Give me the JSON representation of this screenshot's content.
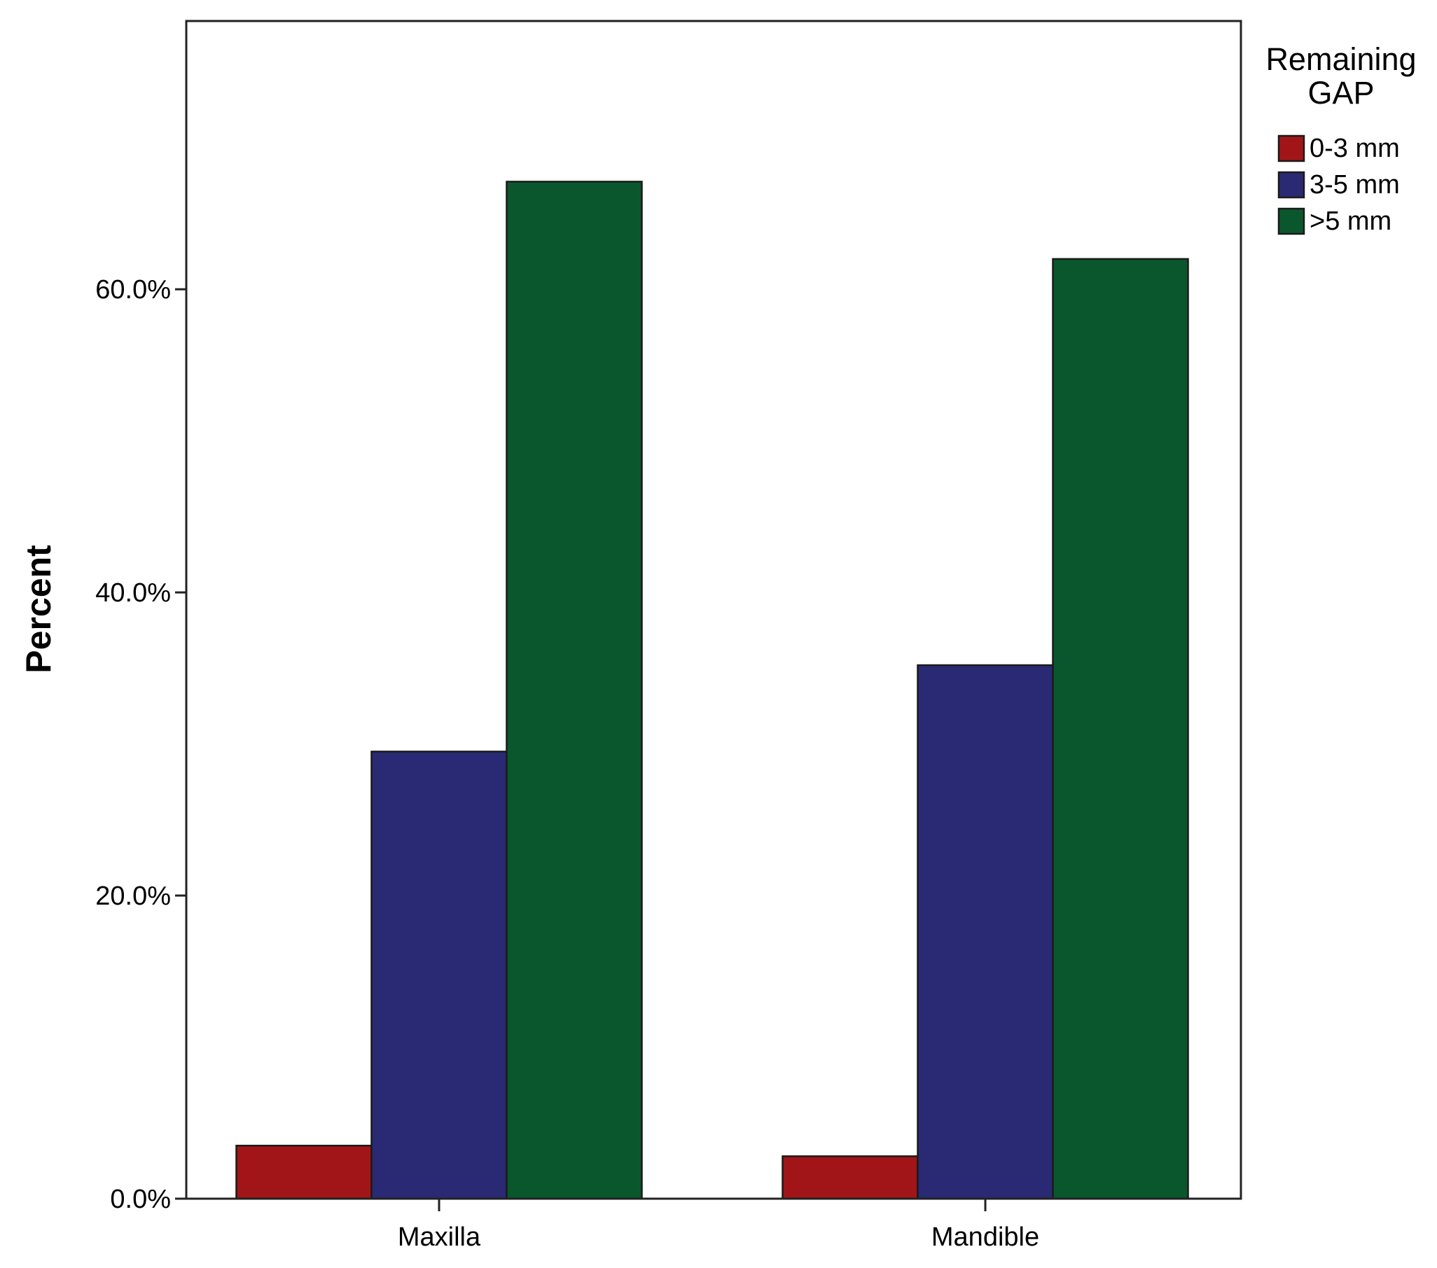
{
  "chart_data": {
    "type": "bar",
    "categories": [
      "Maxilla",
      "Mandible"
    ],
    "series": [
      {
        "name": "0-3 mm",
        "color": "#a11518",
        "values": [
          3.5,
          2.8
        ]
      },
      {
        "name": "3-5 mm",
        "color": "#292a73",
        "values": [
          29.5,
          35.2
        ]
      },
      {
        "name": ">5 mm",
        "color": "#0b572d",
        "values": [
          67.1,
          62.0
        ]
      }
    ],
    "ylabel": "Percent",
    "xlabel": "",
    "ylim": [
      0,
      77.7
    ],
    "yticks": [
      0,
      20,
      40,
      60
    ],
    "ytick_labels": [
      "0.0%",
      "20.0%",
      "40.0%",
      "60.0%"
    ],
    "legend": {
      "title_lines": [
        "Remaining",
        "GAP"
      ],
      "position": "right"
    },
    "grid": false
  }
}
